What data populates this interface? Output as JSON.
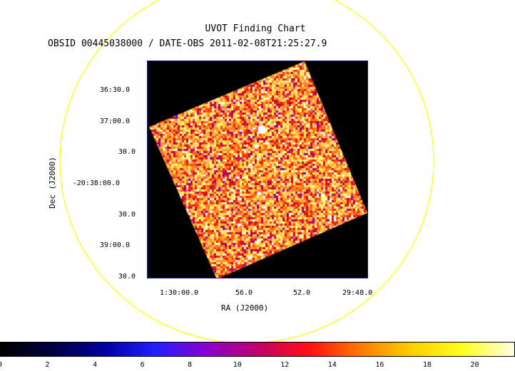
{
  "title": "UVOT Finding Chart",
  "obs_line": "OBSID 00445038000 / DATE-OBS 2011-02-08T21:25:27.9",
  "x_axis": {
    "label": "RA (J2000)",
    "ticks": [
      "1:30:00.0",
      "56.0",
      "52.0",
      "29:48.0"
    ]
  },
  "y_axis": {
    "label": "Dec (J2000)",
    "ticks": [
      "36:30.0",
      "37:00.0",
      "30.0",
      "-20:38:00.0",
      "30.0",
      "39:00.0",
      "30.0"
    ]
  },
  "colorbar": {
    "ticks": [
      "0",
      "2",
      "4",
      "6",
      "8",
      "10",
      "12",
      "14",
      "16",
      "18",
      "20"
    ],
    "colors": [
      "#000000",
      "#000040",
      "#0000a0",
      "#2020ff",
      "#8a00d0",
      "#c0006a",
      "#ff1010",
      "#ff7a00",
      "#ffd000",
      "#ffff20",
      "#ffffe0"
    ]
  },
  "ring_color": "#ffff00"
}
